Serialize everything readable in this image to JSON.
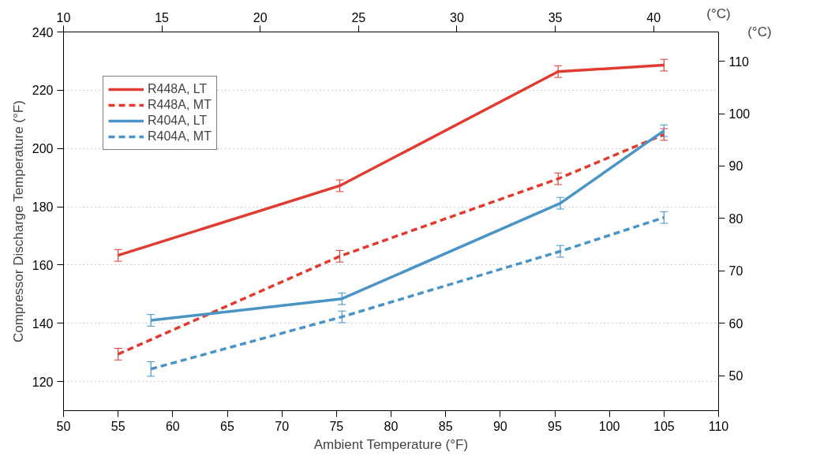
{
  "chart_data": {
    "type": "line",
    "xlabel": "Ambient Temperature (°F)",
    "ylabel": "Compressor Discharge Temperature (°F)",
    "x2label": "(°C)",
    "y2label": "(°C)",
    "xlim": [
      50,
      110
    ],
    "xticks": [
      50,
      55,
      60,
      65,
      70,
      75,
      80,
      85,
      90,
      95,
      100,
      105,
      110
    ],
    "ylim": [
      110,
      240
    ],
    "yticks": [
      120,
      140,
      160,
      180,
      200,
      220,
      240
    ],
    "x2lim": [
      10,
      43.3
    ],
    "x2ticks": [
      10,
      15,
      20,
      25,
      30,
      35,
      40
    ],
    "y2lim": [
      43.3,
      115.6
    ],
    "y2ticks": [
      50,
      60,
      70,
      80,
      90,
      100,
      110
    ],
    "grid": true,
    "legend": "top left",
    "marker": "none",
    "series": [
      {
        "name": "R448A, LT",
        "color": "#e03c31",
        "line_style": "solid",
        "x": [
          55,
          75.3,
          95.3,
          105
        ],
        "values": [
          163.3,
          187.2,
          226.4,
          228.6
        ],
        "errors": [
          2,
          2,
          2,
          2
        ]
      },
      {
        "name": "R448A, MT",
        "color": "#e03c31",
        "line_style": "dashed",
        "x": [
          55,
          75.3,
          95.3,
          105
        ],
        "values": [
          129.4,
          163,
          189.6,
          204.8
        ],
        "errors": [
          2,
          2,
          2,
          2
        ]
      },
      {
        "name": "R404A, LT",
        "color": "#4a94c6",
        "line_style": "solid",
        "x": [
          58,
          75.5,
          95.5,
          105
        ],
        "values": [
          141,
          148.4,
          181.2,
          206.1
        ],
        "errors": [
          2,
          2,
          2,
          2
        ]
      },
      {
        "name": "R404A, MT",
        "color": "#4a94c6",
        "line_style": "dashed",
        "x": [
          58,
          75.5,
          95.5,
          105
        ],
        "values": [
          124.3,
          142.2,
          164.7,
          176.3
        ],
        "errors": [
          2.5,
          2,
          2,
          2
        ]
      }
    ]
  }
}
